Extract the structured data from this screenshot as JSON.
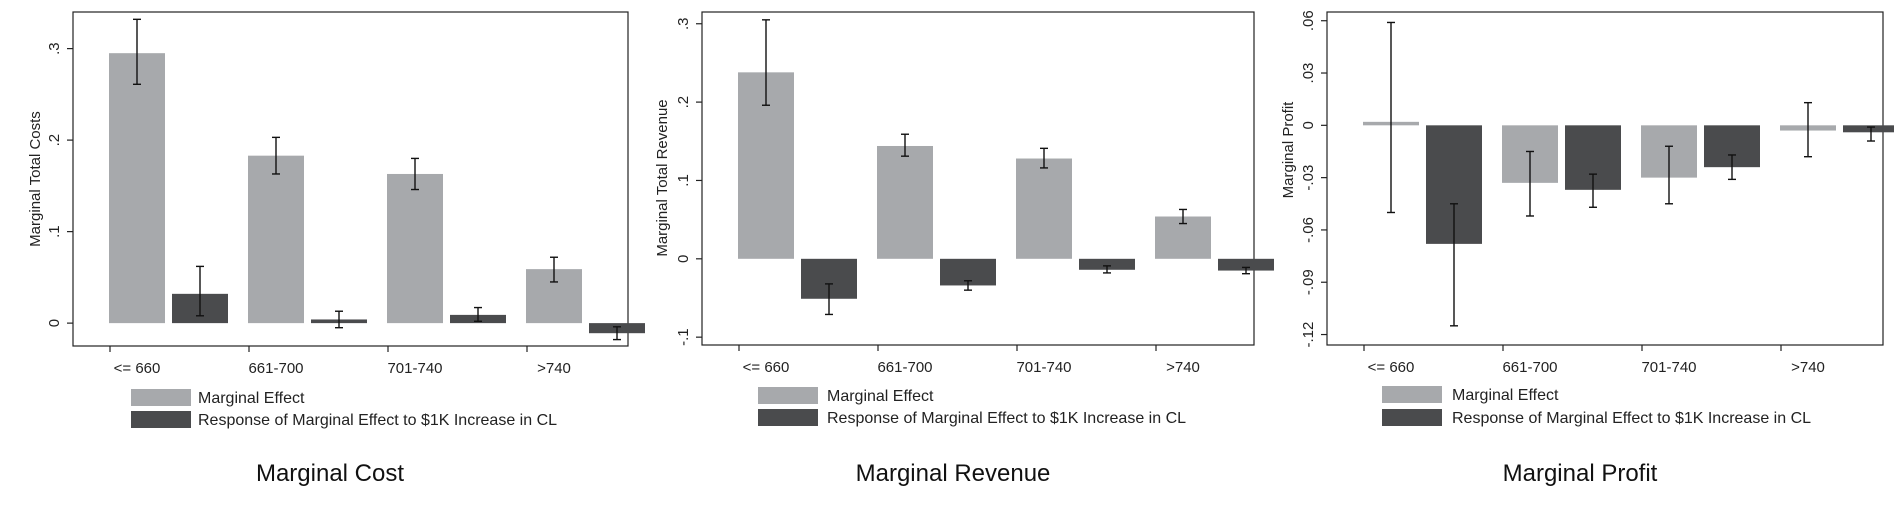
{
  "colors": {
    "marginal_effect": "#a7a9ac",
    "response": "#4a4b4d",
    "axis": "#222222",
    "error_bar": "#111111"
  },
  "chart_data": [
    {
      "type": "bar",
      "title": "Marginal Cost",
      "ylabel": "Marginal Total Costs",
      "xlabel": "",
      "categories": [
        "<= 660",
        "661-700",
        "701-740",
        ">740"
      ],
      "ylim": [
        -0.025,
        0.34
      ],
      "yticks": [
        0,
        0.1,
        0.2,
        0.3
      ],
      "ytick_labels": [
        "0",
        ".1",
        ".2",
        ".3"
      ],
      "series": [
        {
          "name": "Marginal Effect",
          "values": [
            0.295,
            0.183,
            0.163,
            0.059
          ],
          "err_low": [
            0.261,
            0.163,
            0.146,
            0.045
          ],
          "err_high": [
            0.332,
            0.203,
            0.18,
            0.072
          ]
        },
        {
          "name": "Response of Marginal Effect to $1K Increase in CL",
          "values": [
            0.032,
            0.004,
            0.009,
            -0.011
          ],
          "err_low": [
            0.008,
            -0.005,
            0.002,
            -0.018
          ],
          "err_high": [
            0.062,
            0.013,
            0.017,
            -0.004
          ]
        }
      ],
      "legend_position": "bottom"
    },
    {
      "type": "bar",
      "title": "Marginal Revenue",
      "ylabel": "Marginal Total Revenue",
      "xlabel": "",
      "categories": [
        "<= 660",
        "661-700",
        "701-740",
        ">740"
      ],
      "ylim": [
        -0.11,
        0.315
      ],
      "yticks": [
        -0.1,
        0,
        0.1,
        0.2,
        0.3
      ],
      "ytick_labels": [
        "-.1",
        "0",
        ".1",
        ".2",
        ".3"
      ],
      "series": [
        {
          "name": "Marginal Effect",
          "values": [
            0.238,
            0.144,
            0.128,
            0.054
          ],
          "err_low": [
            0.196,
            0.131,
            0.116,
            0.045
          ],
          "err_high": [
            0.305,
            0.159,
            0.141,
            0.063
          ]
        },
        {
          "name": "Response of Marginal Effect to $1K Increase in CL",
          "values": [
            -0.051,
            -0.034,
            -0.014,
            -0.015
          ],
          "err_low": [
            -0.071,
            -0.04,
            -0.018,
            -0.019
          ],
          "err_high": [
            -0.032,
            -0.028,
            -0.009,
            -0.011
          ]
        }
      ],
      "legend_position": "bottom"
    },
    {
      "type": "bar",
      "title": "Marginal Profit",
      "ylabel": "Marginal Profit",
      "xlabel": "",
      "categories": [
        "<= 660",
        "661-700",
        "701-740",
        ">740"
      ],
      "ylim": [
        -0.126,
        0.065
      ],
      "yticks": [
        -0.12,
        -0.09,
        -0.06,
        -0.03,
        0,
        0.03,
        0.06
      ],
      "ytick_labels": [
        "-.12",
        "-.09",
        "-.06",
        "-.03",
        "0",
        ".03",
        ".06"
      ],
      "series": [
        {
          "name": "Marginal Effect",
          "values": [
            0.002,
            -0.033,
            -0.03,
            -0.003
          ],
          "err_low": [
            -0.05,
            -0.052,
            -0.045,
            -0.018
          ],
          "err_high": [
            0.059,
            -0.015,
            -0.012,
            0.013
          ]
        },
        {
          "name": "Response of Marginal Effect to $1K Increase in CL",
          "values": [
            -0.068,
            -0.037,
            -0.024,
            -0.004
          ],
          "err_low": [
            -0.115,
            -0.047,
            -0.031,
            -0.009
          ],
          "err_high": [
            -0.045,
            -0.028,
            -0.017,
            -0.001
          ]
        }
      ],
      "legend_position": "bottom"
    }
  ]
}
